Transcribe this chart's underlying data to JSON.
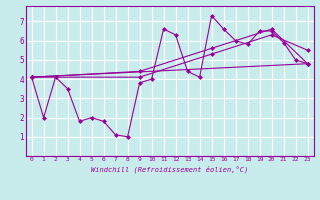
{
  "xlabel": "Windchill (Refroidissement éolien,°C)",
  "bg_color": "#c8ecec",
  "line_color": "#990099",
  "grid_color": "#ffffff",
  "xlim": [
    -0.5,
    23.5
  ],
  "ylim": [
    0,
    7.8
  ],
  "xticks": [
    0,
    1,
    2,
    3,
    4,
    5,
    6,
    7,
    8,
    9,
    10,
    11,
    12,
    13,
    14,
    15,
    16,
    17,
    18,
    19,
    20,
    21,
    22,
    23
  ],
  "yticks": [
    1,
    2,
    3,
    4,
    5,
    6,
    7
  ],
  "series": [
    {
      "x": [
        0,
        1,
        2,
        3,
        4,
        5,
        6,
        7,
        8,
        9,
        10,
        11,
        12,
        13,
        14,
        15,
        16,
        17,
        18,
        19,
        20,
        21,
        22,
        23
      ],
      "y": [
        4.1,
        2.0,
        4.1,
        3.5,
        1.8,
        2.0,
        1.8,
        1.1,
        1.0,
        3.8,
        4.0,
        6.6,
        6.3,
        4.4,
        4.1,
        7.3,
        6.6,
        6.0,
        5.8,
        6.5,
        6.5,
        5.9,
        5.0,
        4.8
      ]
    },
    {
      "x": [
        0,
        23
      ],
      "y": [
        4.1,
        4.8
      ]
    },
    {
      "x": [
        0,
        9,
        15,
        20,
        23
      ],
      "y": [
        4.1,
        4.1,
        5.3,
        6.3,
        5.5
      ]
    },
    {
      "x": [
        0,
        9,
        15,
        20,
        23
      ],
      "y": [
        4.1,
        4.4,
        5.6,
        6.6,
        4.8
      ]
    }
  ]
}
